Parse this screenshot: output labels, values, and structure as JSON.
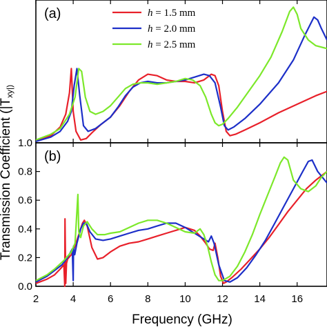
{
  "colors": {
    "red": "#e8202a",
    "blue": "#1c2fc8",
    "green": "#7ce82a"
  },
  "xaxis": {
    "label": "Frequency (GHz)",
    "ticks": [
      2,
      4,
      6,
      8,
      10,
      12,
      14,
      16
    ],
    "tick_labels": [
      "2",
      "4",
      "6",
      "8",
      "10",
      "12",
      "14",
      "16"
    ],
    "range": [
      2,
      17.6
    ]
  },
  "yaxis_title_partial": "Transmission Coefficient (|T",
  "yaxis_title_partial2": "xy|)",
  "chart_data": [
    {
      "panel": "(a)",
      "type": "line",
      "ylim": [
        0,
        1
      ],
      "y_tick_labels_shown": [],
      "legend": [
        {
          "label_math": "h",
          "label_rest": " = 1.5 mm",
          "color_key": "red"
        },
        {
          "label_math": "h",
          "label_rest": " = 2.0 mm",
          "color_key": "blue"
        },
        {
          "label_math": "h",
          "label_rest": " = 2.5 mm",
          "color_key": "green"
        }
      ],
      "series": [
        {
          "name": "h = 1.5 mm",
          "color_key": "red",
          "x": [
            2.0,
            2.8,
            3.3,
            3.6,
            3.8,
            3.9,
            4.0,
            4.15,
            4.4,
            4.7,
            5.0,
            5.5,
            6.0,
            6.5,
            7.0,
            7.5,
            8.0,
            8.5,
            9.0,
            9.5,
            10.0,
            10.5,
            11.0,
            11.4,
            11.6,
            11.8,
            12.0,
            12.2,
            12.4,
            12.7,
            13.2,
            14.0,
            15.0,
            16.0,
            17.0,
            17.6
          ],
          "y": [
            0.01,
            0.05,
            0.11,
            0.2,
            0.35,
            0.52,
            0.22,
            0.08,
            0.02,
            0.03,
            0.07,
            0.13,
            0.18,
            0.26,
            0.36,
            0.44,
            0.48,
            0.47,
            0.44,
            0.43,
            0.43,
            0.42,
            0.44,
            0.48,
            0.47,
            0.4,
            0.22,
            0.08,
            0.05,
            0.06,
            0.09,
            0.14,
            0.21,
            0.27,
            0.33,
            0.36
          ]
        },
        {
          "name": "h = 2.0 mm",
          "color_key": "blue",
          "x": [
            2.0,
            2.8,
            3.3,
            3.7,
            3.9,
            4.05,
            4.2,
            4.35,
            4.55,
            4.8,
            5.2,
            5.6,
            6.0,
            6.4,
            6.8,
            7.2,
            7.6,
            8.0,
            8.5,
            9.0,
            9.5,
            10.0,
            10.5,
            11.0,
            11.3,
            11.6,
            11.9,
            12.1,
            12.3,
            12.6,
            13.2,
            14.0,
            15.0,
            15.8,
            16.4,
            16.9,
            17.1,
            17.3,
            17.6
          ],
          "y": [
            0.01,
            0.04,
            0.08,
            0.15,
            0.22,
            0.4,
            0.52,
            0.33,
            0.12,
            0.08,
            0.1,
            0.14,
            0.18,
            0.25,
            0.33,
            0.39,
            0.42,
            0.43,
            0.42,
            0.42,
            0.43,
            0.44,
            0.46,
            0.48,
            0.47,
            0.42,
            0.25,
            0.12,
            0.09,
            0.11,
            0.17,
            0.27,
            0.42,
            0.58,
            0.75,
            0.88,
            0.86,
            0.8,
            0.72
          ]
        },
        {
          "name": "h = 2.5 mm",
          "color_key": "green",
          "x": [
            2.0,
            2.8,
            3.3,
            3.8,
            4.1,
            4.3,
            4.45,
            4.65,
            4.9,
            5.2,
            5.6,
            6.0,
            6.4,
            6.8,
            7.2,
            7.6,
            8.0,
            8.5,
            9.0,
            9.5,
            10.0,
            10.4,
            10.8,
            11.1,
            11.4,
            11.6,
            11.8,
            12.0,
            12.3,
            12.8,
            13.4,
            14.0,
            14.6,
            15.2,
            15.6,
            15.8,
            16.0,
            16.2,
            16.6,
            17.0,
            17.6
          ],
          "y": [
            0.02,
            0.06,
            0.1,
            0.2,
            0.32,
            0.52,
            0.5,
            0.32,
            0.22,
            0.2,
            0.22,
            0.26,
            0.32,
            0.38,
            0.41,
            0.42,
            0.42,
            0.41,
            0.42,
            0.43,
            0.45,
            0.44,
            0.4,
            0.32,
            0.2,
            0.14,
            0.12,
            0.13,
            0.17,
            0.25,
            0.36,
            0.47,
            0.6,
            0.78,
            0.92,
            0.95,
            0.9,
            0.8,
            0.72,
            0.68,
            0.66
          ]
        }
      ]
    },
    {
      "panel": "(b)",
      "type": "line",
      "ylim": [
        0,
        1.0
      ],
      "yticks": [
        0.0,
        0.2,
        0.4,
        0.6,
        0.8,
        1.0
      ],
      "y_tick_labels": [
        "0.0",
        "0.2",
        "0.4",
        "0.6",
        "0.8",
        "1.0"
      ],
      "series": [
        {
          "name": "h = 1.5 mm",
          "color_key": "red",
          "x": [
            2.0,
            2.6,
            3.0,
            3.3,
            3.5,
            3.55,
            3.56,
            3.6,
            3.64,
            3.7,
            3.9,
            4.1,
            4.3,
            4.5,
            4.6,
            4.75,
            5.0,
            5.3,
            5.6,
            6.0,
            6.5,
            7.0,
            7.5,
            8.0,
            8.5,
            9.0,
            9.5,
            10.0,
            10.5,
            10.8,
            11.1,
            11.3,
            11.5,
            11.6,
            11.75,
            11.9,
            12.05,
            12.2,
            12.5,
            13.0,
            13.5,
            14.0,
            14.5,
            15.0,
            15.5,
            16.0,
            16.5,
            17.0,
            17.6
          ],
          "y": [
            0.02,
            0.05,
            0.08,
            0.12,
            0.15,
            0.0,
            0.47,
            0.02,
            0.16,
            0.19,
            0.22,
            0.28,
            0.36,
            0.44,
            0.46,
            0.42,
            0.27,
            0.19,
            0.2,
            0.24,
            0.28,
            0.3,
            0.31,
            0.33,
            0.35,
            0.37,
            0.39,
            0.41,
            0.39,
            0.35,
            0.3,
            0.26,
            0.25,
            0.3,
            0.2,
            0.07,
            0.02,
            0.03,
            0.06,
            0.12,
            0.19,
            0.26,
            0.34,
            0.43,
            0.52,
            0.6,
            0.68,
            0.74,
            0.8
          ]
        },
        {
          "name": "h = 2.0 mm",
          "color_key": "blue",
          "x": [
            2.0,
            2.6,
            3.0,
            3.4,
            3.7,
            3.95,
            4.0,
            4.02,
            4.08,
            4.2,
            4.4,
            4.55,
            4.7,
            4.9,
            5.2,
            5.6,
            6.0,
            6.5,
            7.0,
            7.5,
            8.0,
            8.5,
            9.0,
            9.5,
            10.0,
            10.5,
            11.0,
            11.25,
            11.4,
            11.55,
            11.8,
            12.1,
            12.4,
            12.8,
            13.3,
            13.8,
            14.3,
            14.8,
            15.3,
            15.8,
            16.3,
            16.6,
            16.8,
            17.1,
            17.6
          ],
          "y": [
            0.03,
            0.07,
            0.11,
            0.15,
            0.2,
            0.26,
            0.04,
            0.28,
            0.22,
            0.3,
            0.4,
            0.44,
            0.44,
            0.38,
            0.33,
            0.32,
            0.33,
            0.35,
            0.37,
            0.39,
            0.4,
            0.42,
            0.44,
            0.44,
            0.41,
            0.37,
            0.33,
            0.31,
            0.35,
            0.3,
            0.15,
            0.04,
            0.03,
            0.06,
            0.13,
            0.22,
            0.32,
            0.44,
            0.56,
            0.68,
            0.8,
            0.87,
            0.88,
            0.8,
            0.72
          ]
        },
        {
          "name": "h = 2.5 mm",
          "color_key": "green",
          "x": [
            2.0,
            2.6,
            3.0,
            3.5,
            3.9,
            4.1,
            4.25,
            4.3,
            4.4,
            4.55,
            4.75,
            5.0,
            5.3,
            5.7,
            6.0,
            6.5,
            7.0,
            7.5,
            8.0,
            8.5,
            9.0,
            9.5,
            10.0,
            10.5,
            10.8,
            11.0,
            11.2,
            11.4,
            11.6,
            11.8,
            12.0,
            12.4,
            12.8,
            13.2,
            13.6,
            14.0,
            14.4,
            14.8,
            15.1,
            15.3,
            15.5,
            15.8,
            16.2,
            16.6,
            17.0,
            17.3,
            17.6
          ],
          "y": [
            0.04,
            0.08,
            0.12,
            0.18,
            0.24,
            0.3,
            0.64,
            0.38,
            0.34,
            0.42,
            0.45,
            0.4,
            0.36,
            0.36,
            0.37,
            0.38,
            0.41,
            0.44,
            0.46,
            0.46,
            0.44,
            0.41,
            0.38,
            0.37,
            0.4,
            0.36,
            0.28,
            0.17,
            0.08,
            0.04,
            0.04,
            0.07,
            0.14,
            0.24,
            0.36,
            0.5,
            0.63,
            0.76,
            0.86,
            0.9,
            0.88,
            0.74,
            0.68,
            0.66,
            0.7,
            0.76,
            0.8
          ]
        }
      ]
    }
  ]
}
